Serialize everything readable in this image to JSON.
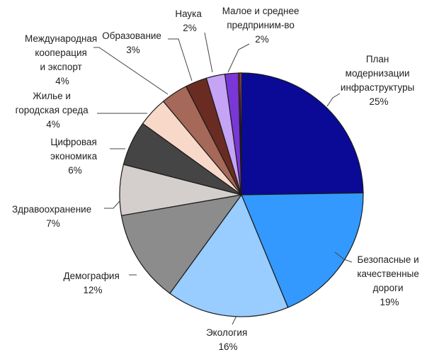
{
  "chart_data": {
    "type": "pie",
    "title": "",
    "start_angle_deg": 0,
    "direction": "clockwise",
    "slices": [
      {
        "label": [
          "План",
          "модернизации",
          "инфраструктуры"
        ],
        "pct_label": "25%",
        "value": 25.0,
        "color": "#0a0a96"
      },
      {
        "label": [
          "Безопасные и",
          "качественные",
          "дороги"
        ],
        "pct_label": "19%",
        "value": 19.2,
        "color": "#3399ff"
      },
      {
        "label": [
          "Экология"
        ],
        "pct_label": "16%",
        "value": 16.4,
        "color": "#99ccff"
      },
      {
        "label": [
          "Демография"
        ],
        "pct_label": "12%",
        "value": 12.4,
        "color": "#8c8c8c"
      },
      {
        "label": [
          "Здравоохранение"
        ],
        "pct_label": "7%",
        "value": 6.8,
        "color": "#d4cfcc"
      },
      {
        "label": [
          "Цифровая",
          "экономика"
        ],
        "pct_label": "6%",
        "value": 6.0,
        "color": "#454545"
      },
      {
        "label": [
          "Жилье и",
          "городская среда"
        ],
        "pct_label": "4%",
        "value": 4.0,
        "color": "#f8d8c8"
      },
      {
        "label": [
          "Международная",
          "кооперация",
          "и экспорт"
        ],
        "pct_label": "4%",
        "value": 3.6,
        "color": "#a66858"
      },
      {
        "label": [
          "Образование"
        ],
        "pct_label": "3%",
        "value": 2.9,
        "color": "#6a2c22"
      },
      {
        "label": [
          "Наука"
        ],
        "pct_label": "2%",
        "value": 2.5,
        "color": "#c5a3f5"
      },
      {
        "label": [
          "Малое и среднее",
          "предприним-во"
        ],
        "pct_label": "2%",
        "value": 1.8,
        "color": "#7a36d6"
      },
      {
        "label": [],
        "pct_label": "",
        "value": 0.2,
        "color": "#cc3333"
      },
      {
        "label": [],
        "pct_label": "",
        "value": 0.2,
        "color": "#f08080"
      }
    ]
  }
}
